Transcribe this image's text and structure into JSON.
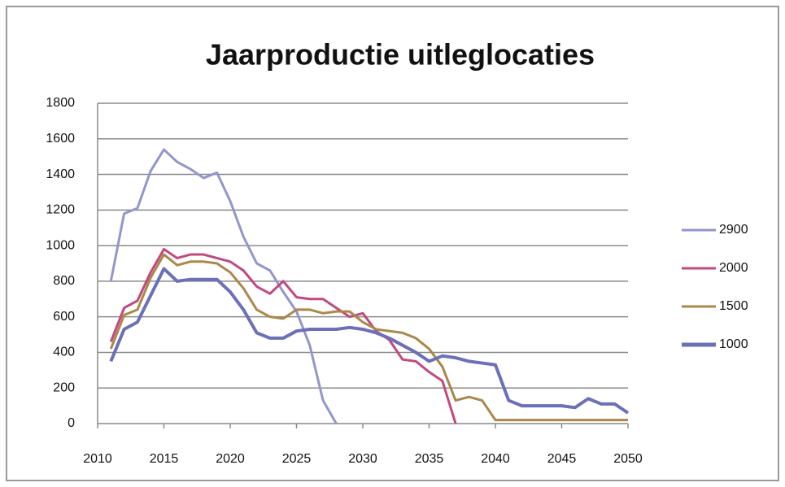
{
  "chart_data": {
    "type": "line",
    "title": "Jaarproductie uitleglocaties",
    "x": [
      2011,
      2012,
      2013,
      2014,
      2015,
      2016,
      2017,
      2018,
      2019,
      2020,
      2021,
      2022,
      2023,
      2024,
      2025,
      2026,
      2027,
      2028,
      2029,
      2030,
      2031,
      2032,
      2033,
      2034,
      2035,
      2036,
      2037,
      2038,
      2039,
      2040,
      2041,
      2042,
      2043,
      2044,
      2045,
      2046,
      2047,
      2048,
      2049,
      2050
    ],
    "xlim": [
      2010,
      2050
    ],
    "xticks": [
      2010,
      2015,
      2020,
      2025,
      2030,
      2035,
      2040,
      2045,
      2050
    ],
    "ylim": [
      0,
      1800
    ],
    "yticks": [
      0,
      200,
      400,
      600,
      800,
      1000,
      1200,
      1400,
      1600,
      1800
    ],
    "grid": true,
    "legend": "right",
    "series": [
      {
        "name": "2900",
        "color": "#9296cb",
        "values": [
          800,
          1180,
          1210,
          1420,
          1540,
          1470,
          1430,
          1380,
          1410,
          1250,
          1050,
          900,
          860,
          740,
          630,
          440,
          130,
          0,
          null,
          null,
          null,
          null,
          null,
          null,
          null,
          null,
          null,
          null,
          null,
          null,
          null,
          null,
          null,
          null,
          null,
          null,
          null,
          null,
          null,
          null
        ]
      },
      {
        "name": "2000",
        "color": "#c2487f",
        "values": [
          460,
          650,
          690,
          850,
          980,
          930,
          950,
          950,
          930,
          910,
          860,
          770,
          730,
          800,
          710,
          700,
          700,
          650,
          600,
          620,
          520,
          470,
          360,
          350,
          290,
          240,
          0,
          null,
          null,
          null,
          null,
          null,
          null,
          null,
          null,
          null,
          null,
          null,
          null,
          null
        ]
      },
      {
        "name": "1500",
        "color": "#aa884a",
        "values": [
          420,
          610,
          640,
          820,
          950,
          890,
          910,
          910,
          900,
          850,
          760,
          640,
          600,
          590,
          640,
          640,
          620,
          630,
          630,
          570,
          530,
          520,
          510,
          480,
          420,
          320,
          130,
          150,
          130,
          20,
          20,
          20,
          20,
          20,
          20,
          20,
          20,
          20,
          20,
          20
        ]
      },
      {
        "name": "1000",
        "color": "#6b70b8",
        "values": [
          350,
          530,
          570,
          720,
          870,
          800,
          810,
          810,
          810,
          740,
          640,
          510,
          480,
          480,
          520,
          530,
          530,
          530,
          540,
          530,
          510,
          480,
          440,
          400,
          350,
          380,
          370,
          350,
          340,
          330,
          130,
          100,
          100,
          100,
          100,
          90,
          140,
          110,
          110,
          60
        ]
      }
    ]
  }
}
